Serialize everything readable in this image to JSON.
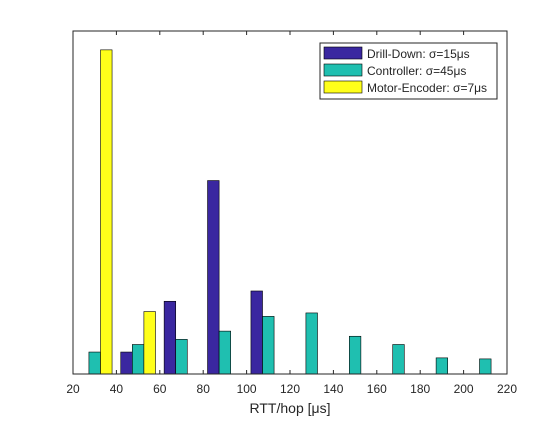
{
  "chart_data": {
    "type": "bar",
    "title": "",
    "xlabel": "RTT/hop [μs]",
    "ylabel": "",
    "xlim": [
      20,
      220
    ],
    "ylim": [
      0,
      1
    ],
    "xticks": [
      20,
      40,
      60,
      80,
      100,
      120,
      140,
      160,
      180,
      200,
      220
    ],
    "grid": false,
    "legend_position": "top-right",
    "categories": [
      30,
      50,
      70,
      90,
      110,
      130,
      150,
      170,
      190,
      210
    ],
    "series": [
      {
        "name": "Drill-Down: σ=15μs",
        "color": "#3a27a0",
        "values": [
          0,
          0.064,
          0.212,
          0.564,
          0.242,
          0,
          0,
          0,
          0,
          0
        ]
      },
      {
        "name": "Controller: σ=45μs",
        "color": "#1fbfb0",
        "values": [
          0.064,
          0.086,
          0.101,
          0.125,
          0.168,
          0.178,
          0.11,
          0.086,
          0.047,
          0.044
        ]
      },
      {
        "name": "Motor-Encoder: σ=7μs",
        "color": "#ffff1a",
        "values": [
          0.945,
          0.182,
          0,
          0,
          0,
          0,
          0,
          0,
          0,
          0
        ]
      }
    ]
  }
}
